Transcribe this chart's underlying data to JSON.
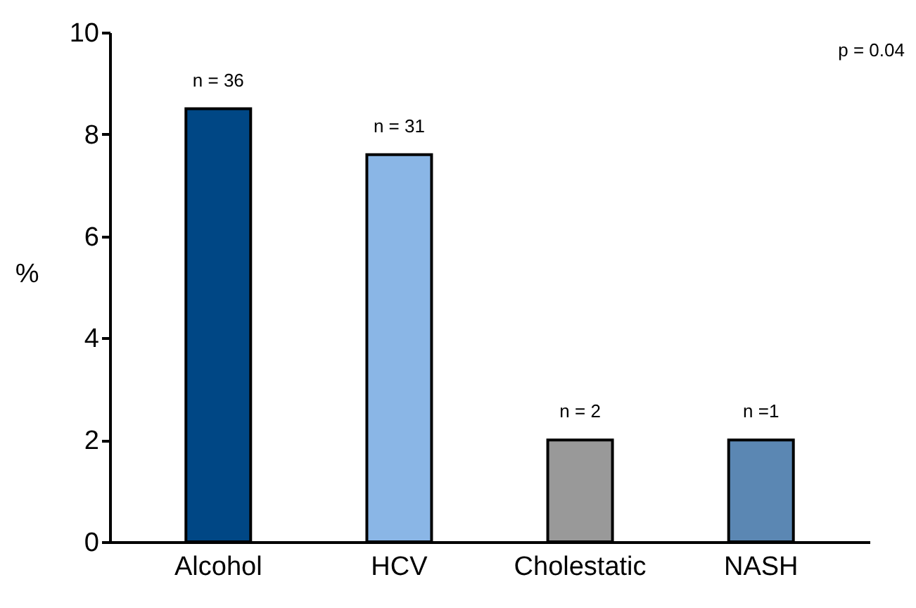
{
  "chart_data": {
    "type": "bar",
    "categories": [
      "Alcohol",
      "HCV",
      "Cholestatic",
      "NASH"
    ],
    "values": [
      8.5,
      7.6,
      2,
      2
    ],
    "colors": [
      "#004785",
      "#8ab6e6",
      "#999999",
      "#5b87b3"
    ],
    "ylabel": "%",
    "ylim": [
      0,
      10
    ],
    "yticks": [
      0,
      2,
      4,
      6,
      8,
      10
    ],
    "grid": false,
    "annotations": [
      {
        "text": "n = 36",
        "x": "Alcohol",
        "y": 8.5
      },
      {
        "text": "n = 31",
        "x": "HCV",
        "y": 7.6
      },
      {
        "text": "n = 2",
        "x": "Cholestatic",
        "y": 2
      },
      {
        "text": "n =1",
        "x": "NASH",
        "y": 2
      },
      "p = 0.04"
    ]
  }
}
